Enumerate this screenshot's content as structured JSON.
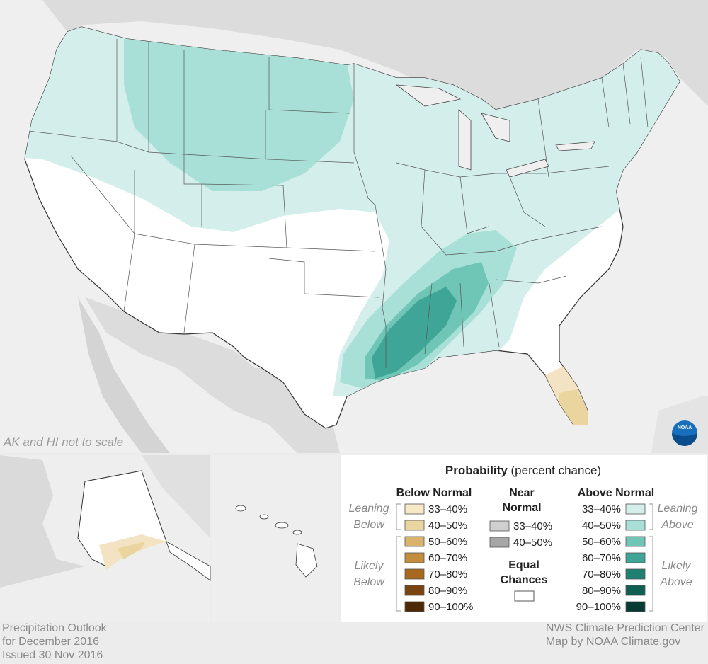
{
  "note": "AK and HI not to scale",
  "footer": {
    "left_lines": [
      "Precipitation Outlook",
      "for December 2016",
      "Issued 30 Nov 2016"
    ],
    "right_lines": [
      "NWS Climate Prediction Center",
      "Map by NOAA Climate.gov"
    ]
  },
  "logo": {
    "text": "NOAA"
  },
  "legend": {
    "title_bold": "Probability",
    "title_rest": " (percent chance)",
    "below": {
      "header": "Below Normal",
      "leaning_label": [
        "Leaning",
        "Below"
      ],
      "likely_label": [
        "Likely",
        "Below"
      ],
      "items": [
        {
          "label": "33–40%",
          "color": "#f7e8c6"
        },
        {
          "label": "40–50%",
          "color": "#ebd59f"
        },
        {
          "label": "50–60%",
          "color": "#d9b36b"
        },
        {
          "label": "60–70%",
          "color": "#c48f3c"
        },
        {
          "label": "70–80%",
          "color": "#a8691f"
        },
        {
          "label": "80–90%",
          "color": "#7a4410"
        },
        {
          "label": "90–100%",
          "color": "#4d2806"
        }
      ]
    },
    "near": {
      "header": [
        "Near",
        "Normal"
      ],
      "items": [
        {
          "label": "33–40%",
          "color": "#cfcfcf"
        },
        {
          "label": "40–50%",
          "color": "#a6a6a6"
        }
      ],
      "equal_header": [
        "Equal",
        "Chances"
      ],
      "equal_color": "#ffffff"
    },
    "above": {
      "header": "Above Normal",
      "leaning_label": [
        "Leaning",
        "Above"
      ],
      "likely_label": [
        "Likely",
        "Above"
      ],
      "items": [
        {
          "label": "33–40%",
          "color": "#d4efeb"
        },
        {
          "label": "40–50%",
          "color": "#a8e0d7"
        },
        {
          "label": "50–60%",
          "color": "#6fc6b7"
        },
        {
          "label": "60–70%",
          "color": "#3fa596"
        },
        {
          "label": "70–80%",
          "color": "#1f8072"
        },
        {
          "label": "80–90%",
          "color": "#0e5e52"
        },
        {
          "label": "90–100%",
          "color": "#053b33"
        }
      ]
    }
  },
  "colors": {
    "ocean": "#ececec",
    "land_other": "#d9d9d9",
    "equal_chances": "#ffffff",
    "border": "#333333"
  }
}
